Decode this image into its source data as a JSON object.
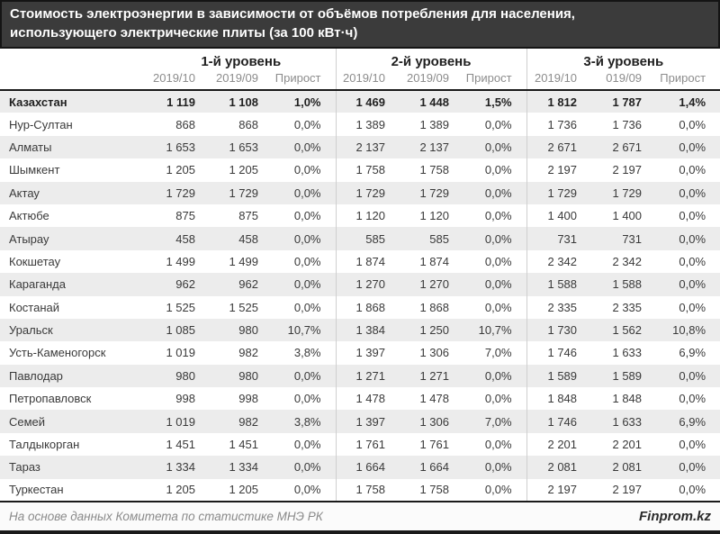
{
  "title": {
    "line1": "Стоимость электроэнергии в зависимости от объёмов потребления для населения,",
    "line2": "использующего электрические плиты (за 100 кВт·ч)"
  },
  "chart_data": {
    "type": "table",
    "title": "Стоимость электроэнергии в зависимости от объёмов потребления для населения, использующего электрические плиты (за 100 кВт·ч)",
    "column_groups": [
      {
        "label": "1-й уровень",
        "columns": [
          "2019/10",
          "2019/09",
          "Прирост"
        ]
      },
      {
        "label": "2-й уровень",
        "columns": [
          "2019/10",
          "2019/09",
          "Прирост"
        ]
      },
      {
        "label": "3-й уровень",
        "columns": [
          "2019/10",
          "019/09",
          "Прирост"
        ]
      }
    ],
    "rows": [
      {
        "region": "Казахстан",
        "bold": true,
        "values": [
          "1 119",
          "1 108",
          "1,0%",
          "1 469",
          "1 448",
          "1,5%",
          "1 812",
          "1 787",
          "1,4%"
        ]
      },
      {
        "region": "Нур-Султан",
        "bold": false,
        "values": [
          "868",
          "868",
          "0,0%",
          "1 389",
          "1 389",
          "0,0%",
          "1 736",
          "1 736",
          "0,0%"
        ]
      },
      {
        "region": "Алматы",
        "bold": false,
        "values": [
          "1 653",
          "1 653",
          "0,0%",
          "2 137",
          "2 137",
          "0,0%",
          "2 671",
          "2 671",
          "0,0%"
        ]
      },
      {
        "region": "Шымкент",
        "bold": false,
        "values": [
          "1 205",
          "1 205",
          "0,0%",
          "1 758",
          "1 758",
          "0,0%",
          "2 197",
          "2 197",
          "0,0%"
        ]
      },
      {
        "region": "Актау",
        "bold": false,
        "values": [
          "1 729",
          "1 729",
          "0,0%",
          "1 729",
          "1 729",
          "0,0%",
          "1 729",
          "1 729",
          "0,0%"
        ]
      },
      {
        "region": "Актюбе",
        "bold": false,
        "values": [
          "875",
          "875",
          "0,0%",
          "1 120",
          "1 120",
          "0,0%",
          "1 400",
          "1 400",
          "0,0%"
        ]
      },
      {
        "region": "Атырау",
        "bold": false,
        "values": [
          "458",
          "458",
          "0,0%",
          "585",
          "585",
          "0,0%",
          "731",
          "731",
          "0,0%"
        ]
      },
      {
        "region": "Кокшетау",
        "bold": false,
        "values": [
          "1 499",
          "1 499",
          "0,0%",
          "1 874",
          "1 874",
          "0,0%",
          "2 342",
          "2 342",
          "0,0%"
        ]
      },
      {
        "region": "Караганда",
        "bold": false,
        "values": [
          "962",
          "962",
          "0,0%",
          "1 270",
          "1 270",
          "0,0%",
          "1 588",
          "1 588",
          "0,0%"
        ]
      },
      {
        "region": "Костанай",
        "bold": false,
        "values": [
          "1 525",
          "1 525",
          "0,0%",
          "1 868",
          "1 868",
          "0,0%",
          "2 335",
          "2 335",
          "0,0%"
        ]
      },
      {
        "region": "Уральск",
        "bold": false,
        "values": [
          "1 085",
          "980",
          "10,7%",
          "1 384",
          "1 250",
          "10,7%",
          "1 730",
          "1 562",
          "10,8%"
        ]
      },
      {
        "region": "Усть-Каменогорск",
        "bold": false,
        "values": [
          "1 019",
          "982",
          "3,8%",
          "1 397",
          "1 306",
          "7,0%",
          "1 746",
          "1 633",
          "6,9%"
        ]
      },
      {
        "region": "Павлодар",
        "bold": false,
        "values": [
          "980",
          "980",
          "0,0%",
          "1 271",
          "1 271",
          "0,0%",
          "1 589",
          "1 589",
          "0,0%"
        ]
      },
      {
        "region": "Петропавловск",
        "bold": false,
        "values": [
          "998",
          "998",
          "0,0%",
          "1 478",
          "1 478",
          "0,0%",
          "1 848",
          "1 848",
          "0,0%"
        ]
      },
      {
        "region": "Семей",
        "bold": false,
        "values": [
          "1 019",
          "982",
          "3,8%",
          "1 397",
          "1 306",
          "7,0%",
          "1 746",
          "1 633",
          "6,9%"
        ]
      },
      {
        "region": "Талдыкорган",
        "bold": false,
        "values": [
          "1 451",
          "1 451",
          "0,0%",
          "1 761",
          "1 761",
          "0,0%",
          "2 201",
          "2 201",
          "0,0%"
        ]
      },
      {
        "region": "Тараз",
        "bold": false,
        "values": [
          "1 334",
          "1 334",
          "0,0%",
          "1 664",
          "1 664",
          "0,0%",
          "2 081",
          "2 081",
          "0,0%"
        ]
      },
      {
        "region": "Туркестан",
        "bold": false,
        "values": [
          "1 205",
          "1 205",
          "0,0%",
          "1 758",
          "1 758",
          "0,0%",
          "2 197",
          "2 197",
          "0,0%"
        ]
      }
    ]
  },
  "footer": {
    "source": "На основе данных Комитета по статистике МНЭ РК",
    "brand": "Finprom.kz"
  },
  "colors": {
    "title_bar_bg": "#3b3b3b",
    "title_text": "#ffffff",
    "stripe": "#ececec",
    "rule_line": "#1a1a1a",
    "subheader_text": "#8c8c8c",
    "divider": "#cfcfcf"
  }
}
